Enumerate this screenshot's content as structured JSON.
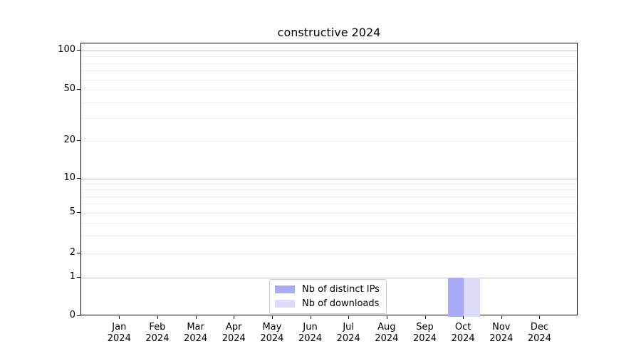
{
  "title": "constructive 2024",
  "chart_data": {
    "type": "bar",
    "title": "constructive 2024",
    "categories": [
      "Jan 2024",
      "Feb 2024",
      "Mar 2024",
      "Apr 2024",
      "May 2024",
      "Jun 2024",
      "Jul 2024",
      "Aug 2024",
      "Sep 2024",
      "Oct 2024",
      "Nov 2024",
      "Dec 2024"
    ],
    "series": [
      {
        "name": "Nb of distinct IPs",
        "color": "#aaaaf5",
        "values": [
          0,
          0,
          0,
          0,
          0,
          0,
          0,
          0,
          0,
          1,
          0,
          0
        ]
      },
      {
        "name": "Nb of downloads",
        "color": "#dcdcf8",
        "values": [
          0,
          0,
          0,
          0,
          0,
          0,
          0,
          0,
          0,
          1,
          0,
          0
        ]
      }
    ],
    "xlabel": "",
    "ylabel": "",
    "yscale": "log above 1, linear 0-1",
    "ytick_values": [
      0,
      1,
      2,
      5,
      10,
      20,
      50,
      100
    ],
    "ytick_labels": [
      "0",
      "1",
      "2",
      "5",
      "10",
      "20",
      "50",
      "100"
    ],
    "minor_gridline_values": [
      3,
      4,
      6,
      7,
      8,
      9,
      30,
      40,
      60,
      70,
      80,
      90
    ],
    "major_gridline_values": [
      1,
      10,
      100
    ],
    "ylim": [
      0,
      114
    ],
    "grid": true,
    "legend_position": "lower center of plot",
    "colors": {
      "major_grid": "#c2c2c2",
      "minor_grid": "#ededed",
      "spine": "#000000",
      "background": "#ffffff"
    }
  }
}
